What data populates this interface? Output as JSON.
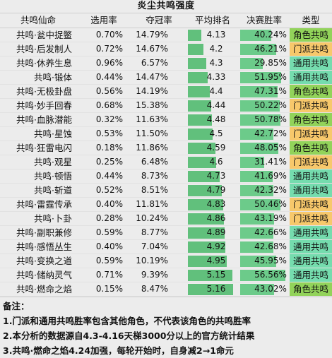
{
  "title": "炎尘共鸣强度",
  "headers": {
    "name": "共鸣仙命",
    "pick": "选用率",
    "champ": "夺冠率",
    "avg": "平均排名",
    "win": "决赛胜率",
    "type": "类型"
  },
  "colors": {
    "bar": "#61c07c",
    "role": "#92d35a",
    "sect": "#f7c86b",
    "general": "#75dcae"
  },
  "rows": [
    {
      "name": "共鸣·瓮中捉鳖",
      "pick": "0.70%",
      "champ": "14.79%",
      "avg": "4.13",
      "win": "40.24%",
      "type": "角色共鸣",
      "kind": "role"
    },
    {
      "name": "共鸣·后发制人",
      "pick": "0.72%",
      "champ": "14.67%",
      "avg": "4.2",
      "win": "46.21%",
      "type": "门派共鸣",
      "kind": "sect"
    },
    {
      "name": "共鸣·休养生息",
      "pick": "0.96%",
      "champ": "6.57%",
      "avg": "4.3",
      "win": "29.85%",
      "type": "通用共鸣",
      "kind": "general"
    },
    {
      "name": "共鸣·锻体",
      "pick": "0.44%",
      "champ": "14.47%",
      "avg": "4.33",
      "win": "51.95%",
      "type": "通用共鸣",
      "kind": "general"
    },
    {
      "name": "共鸣·无极卦盘",
      "pick": "0.56%",
      "champ": "14.19%",
      "avg": "4.4",
      "win": "47.31%",
      "type": "角色共鸣",
      "kind": "role"
    },
    {
      "name": "共鸣·妙手回春",
      "pick": "0.68%",
      "champ": "15.38%",
      "avg": "4.44",
      "win": "50.22%",
      "type": "门派共鸣",
      "kind": "sect"
    },
    {
      "name": "共鸣·血脉潜能",
      "pick": "0.32%",
      "champ": "11.63%",
      "avg": "4.48",
      "win": "50.78%",
      "type": "角色共鸣",
      "kind": "role"
    },
    {
      "name": "共鸣·星蚀",
      "pick": "0.53%",
      "champ": "11.50%",
      "avg": "4.5",
      "win": "42.72%",
      "type": "门派共鸣",
      "kind": "sect"
    },
    {
      "name": "共鸣·狂雷电闪",
      "pick": "0.18%",
      "champ": "11.86%",
      "avg": "4.59",
      "win": "48.05%",
      "type": "角色共鸣",
      "kind": "role"
    },
    {
      "name": "共鸣·观星",
      "pick": "0.25%",
      "champ": "6.48%",
      "avg": "4.6",
      "win": "31.41%",
      "type": "门派共鸣",
      "kind": "sect"
    },
    {
      "name": "共鸣·顿悟",
      "pick": "0.44%",
      "champ": "8.73%",
      "avg": "4.73",
      "win": "41.69%",
      "type": "通用共鸣",
      "kind": "general"
    },
    {
      "name": "共鸣·斩道",
      "pick": "0.52%",
      "champ": "8.51%",
      "avg": "4.79",
      "win": "42.32%",
      "type": "通用共鸣",
      "kind": "general"
    },
    {
      "name": "共鸣·雷霆传承",
      "pick": "0.40%",
      "champ": "11.81%",
      "avg": "4.83",
      "win": "50.46%",
      "type": "门派共鸣",
      "kind": "sect"
    },
    {
      "name": "共鸣·卜卦",
      "pick": "0.28%",
      "champ": "10.24%",
      "avg": "4.86",
      "win": "43.19%",
      "type": "门派共鸣",
      "kind": "sect"
    },
    {
      "name": "共鸣·副职兼修",
      "pick": "0.59%",
      "champ": "8.77%",
      "avg": "4.89",
      "win": "42.66%",
      "type": "通用共鸣",
      "kind": "general"
    },
    {
      "name": "共鸣·感悟丛生",
      "pick": "0.40%",
      "champ": "7.04%",
      "avg": "4.92",
      "win": "42.68%",
      "type": "通用共鸣",
      "kind": "general"
    },
    {
      "name": "共鸣·变换之道",
      "pick": "0.59%",
      "champ": "10.19%",
      "avg": "4.95",
      "win": "45.95%",
      "type": "通用共鸣",
      "kind": "general"
    },
    {
      "name": "共鸣·储纳灵气",
      "pick": "0.71%",
      "champ": "9.39%",
      "avg": "5.15",
      "win": "56.56%",
      "type": "通用共鸣",
      "kind": "general"
    },
    {
      "name": "共鸣·燃命之焰",
      "pick": "0.15%",
      "champ": "8.47%",
      "avg": "5.16",
      "win": "43.02%",
      "type": "角色共鸣",
      "kind": "role"
    }
  ],
  "notes": {
    "heading": "备注：",
    "items": [
      "1.门派和通用共鸣胜率包含其他角色，不代表该角色的共鸣胜率",
      "2.本分析的数据源自4.3-4.16天梯3000分以上的官方统计结果",
      "3.共鸣·燃命之焰4.24加强，每轮开始时，自身减2→1命元"
    ]
  }
}
